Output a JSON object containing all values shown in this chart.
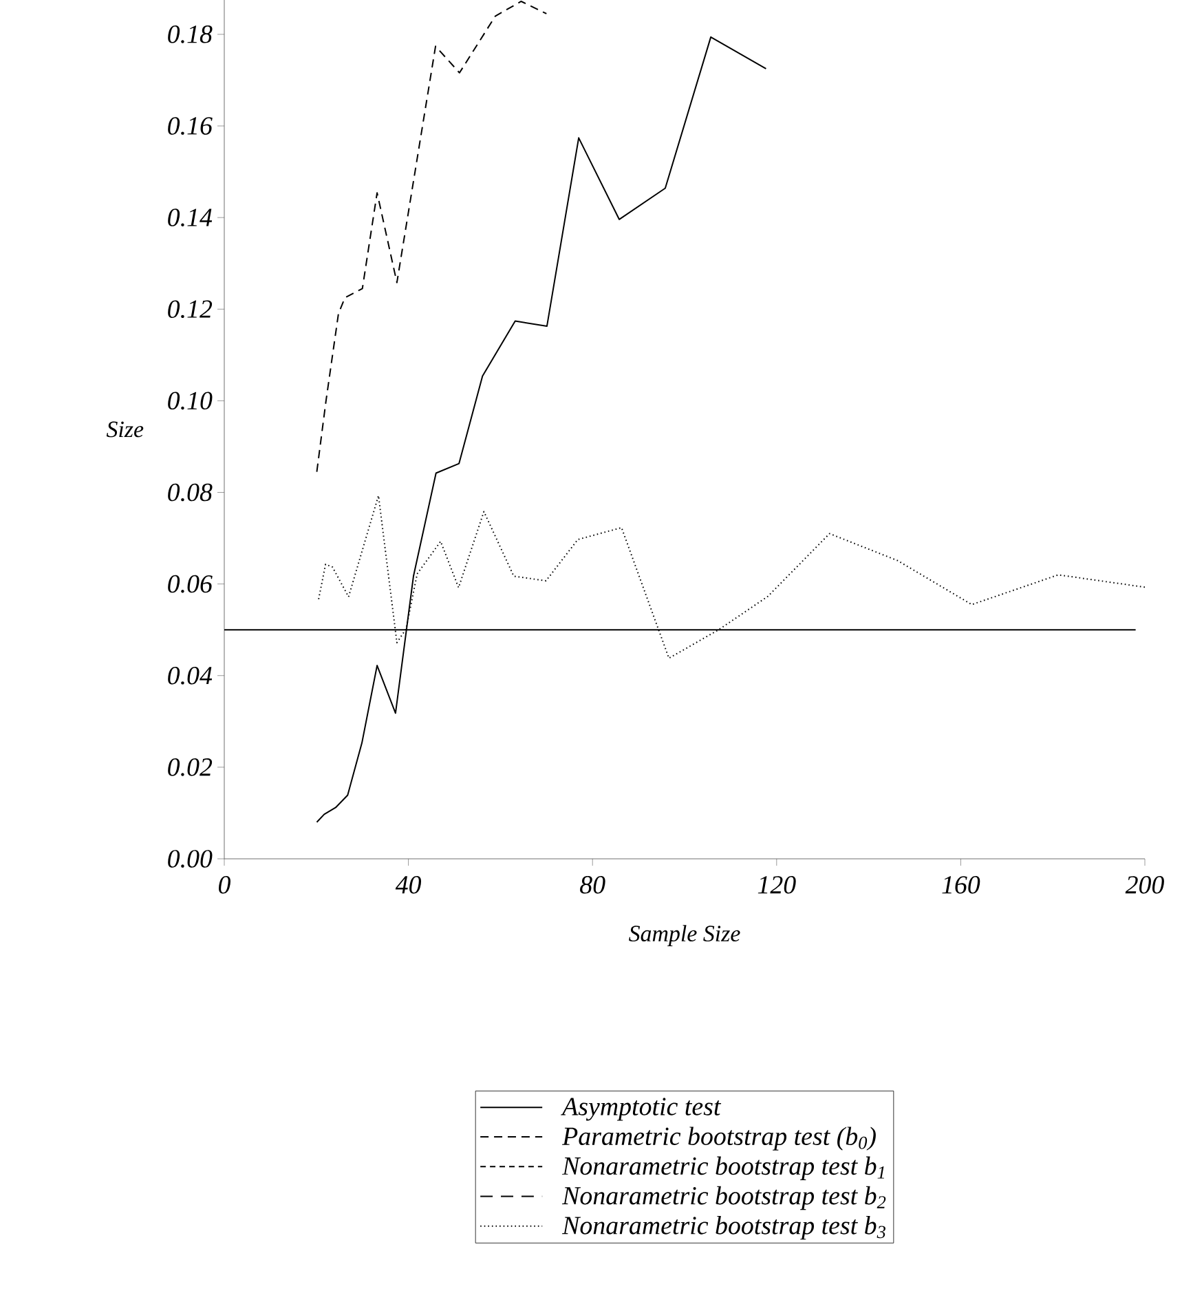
{
  "chart_data": {
    "type": "line",
    "xlabel": "Sample Size",
    "ylabel": "Size",
    "xlim": [
      0,
      200
    ],
    "ylim": [
      0,
      0.1875
    ],
    "xticks": [
      0,
      40,
      80,
      120,
      160,
      200
    ],
    "yticks": [
      {
        "value": 0,
        "label": "0.00"
      },
      {
        "value": 0.02,
        "label": "0.02"
      },
      {
        "value": 0.04,
        "label": "0.04"
      },
      {
        "value": 0.06,
        "label": "0.06"
      },
      {
        "value": 0.08,
        "label": "0.08"
      },
      {
        "value": 0.1,
        "label": "0.10"
      },
      {
        "value": 0.12,
        "label": "0.12"
      },
      {
        "value": 0.14,
        "label": "0.14"
      },
      {
        "value": 0.16,
        "label": "0.16"
      },
      {
        "value": 0.18,
        "label": "0.18"
      }
    ],
    "legend": "bottom",
    "grid": false,
    "marker": "none",
    "ref_lines": [
      {
        "axis": "y",
        "value": 0.05,
        "color": "#000000",
        "line_style": "solid"
      }
    ],
    "series": [
      {
        "name": "*Asymptotic test*",
        "color": "#000000",
        "line_style": "solid",
        "x": [
          20.1,
          21.7,
          24.2,
          26.8,
          29.9,
          33.2,
          37.2,
          41.1,
          46.0,
          51.0,
          56.1,
          63.2,
          70.1,
          77.0,
          85.8,
          95.8,
          105.7,
          117.7
        ],
        "values": [
          0.008,
          0.0097,
          0.0112,
          0.0139,
          0.0253,
          0.0422,
          0.0318,
          0.0617,
          0.0842,
          0.0863,
          0.1054,
          0.1174,
          0.1163,
          0.1574,
          0.1396,
          0.1464,
          0.1794,
          0.1725
        ]
      },
      {
        "name": "*Parametric bootstrap test (b*$_{0}$*)*",
        "color": "#000000",
        "line_style": "dashed",
        "x": [
          20.1,
          22.1,
          24.8,
          26.2,
          30.0,
          33.2,
          37.5,
          45.9,
          51.1,
          58.9,
          64.5,
          70.0
        ],
        "values": [
          0.0845,
          0.1,
          0.119,
          0.1225,
          0.1245,
          0.1454,
          0.1258,
          0.1774,
          0.1716,
          0.184,
          0.1872,
          0.1845
        ]
      },
      {
        "name": "*Nonarametric bootstrap test b*$_{1}$",
        "color": "#000000",
        "line_style": "dashed"
      },
      {
        "name": "*Nonarametric bootstrap test b*$_{2}$",
        "color": "#000000",
        "line_style": "dashed"
      },
      {
        "name": "*Nonarametric bootstrap test b*$_{3}$",
        "color": "#000000",
        "line_style": "dotted",
        "x": [
          20.5,
          22.0,
          23.5,
          27.0,
          33.5,
          37.5,
          39.5,
          41.9,
          47.0,
          50.9,
          56.4,
          62.9,
          69.9,
          76.8,
          86.3,
          96.6,
          107.4,
          118.1,
          131.5,
          146.3,
          162.4,
          181.2,
          200
        ],
        "values": [
          0.0567,
          0.0643,
          0.0637,
          0.0572,
          0.0793,
          0.0472,
          0.0502,
          0.0622,
          0.0693,
          0.0592,
          0.0758,
          0.0617,
          0.0607,
          0.0697,
          0.0723,
          0.0438,
          0.05,
          0.0573,
          0.071,
          0.0651,
          0.0555,
          0.062,
          0.0593
        ]
      }
    ]
  }
}
